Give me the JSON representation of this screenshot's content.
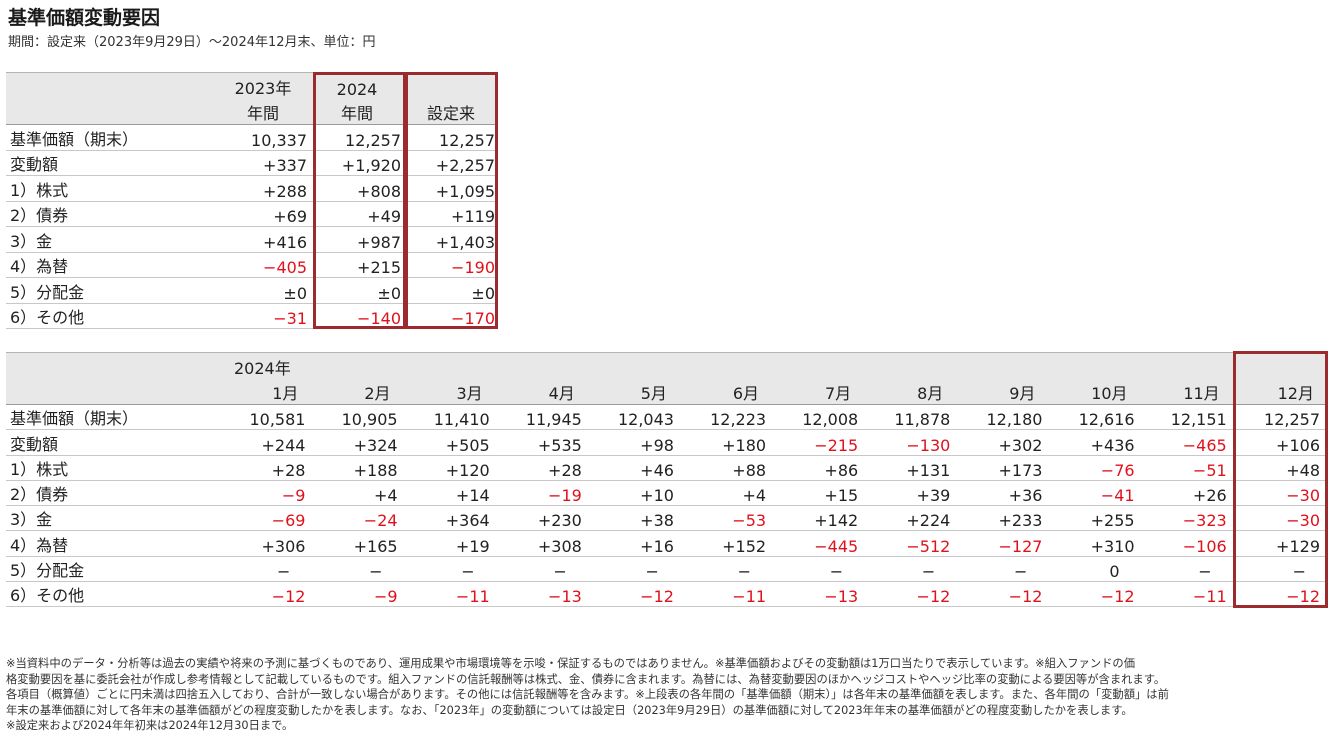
{
  "header": {
    "title": "基準価額変動要因",
    "subtitle": "期間：設定来（2023年9月29日）～2024年12月末、単位：円"
  },
  "annual_table": {
    "columns": [
      {
        "line1": "2023年",
        "line2": "年間"
      },
      {
        "line1": "2024",
        "line2": "年間"
      },
      {
        "line1": "",
        "line2": "設定来"
      }
    ],
    "rows": [
      {
        "label": "基準価額（期末）",
        "values": [
          "10,337",
          "12,257",
          "12,257"
        ]
      },
      {
        "label": "変動額",
        "values": [
          "+337",
          "+1,920",
          "+2,257"
        ]
      },
      {
        "label": "1）株式",
        "values": [
          "+288",
          "+808",
          "+1,095"
        ]
      },
      {
        "label": "2）債券",
        "values": [
          "+69",
          "+49",
          "+119"
        ]
      },
      {
        "label": "3）金",
        "values": [
          "+416",
          "+987",
          "+1,403"
        ]
      },
      {
        "label": "4）為替",
        "values": [
          "−405",
          "+215",
          "−190"
        ]
      },
      {
        "label": "5）分配金",
        "values": [
          "±0",
          "±0",
          "±0"
        ]
      },
      {
        "label": "6）その他",
        "values": [
          "−31",
          "−140",
          "−170"
        ]
      }
    ]
  },
  "monthly_table": {
    "year_label": "2024年",
    "columns": [
      "1月",
      "2月",
      "3月",
      "4月",
      "5月",
      "6月",
      "7月",
      "8月",
      "9月",
      "10月",
      "11月",
      "12月"
    ],
    "rows": [
      {
        "label": "基準価額（期末）",
        "values": [
          "10,581",
          "10,905",
          "11,410",
          "11,945",
          "12,043",
          "12,223",
          "12,008",
          "11,878",
          "12,180",
          "12,616",
          "12,151",
          "12,257"
        ]
      },
      {
        "label": "変動額",
        "values": [
          "+244",
          "+324",
          "+505",
          "+535",
          "+98",
          "+180",
          "−215",
          "−130",
          "+302",
          "+436",
          "−465",
          "+106"
        ]
      },
      {
        "label": "1）株式",
        "values": [
          "+28",
          "+188",
          "+120",
          "+28",
          "+46",
          "+88",
          "+86",
          "+131",
          "+173",
          "−76",
          "−51",
          "+48"
        ]
      },
      {
        "label": "2）債券",
        "values": [
          "−9",
          "+4",
          "+14",
          "−19",
          "+10",
          "+4",
          "+15",
          "+39",
          "+36",
          "−41",
          "+26",
          "−30"
        ]
      },
      {
        "label": "3）金",
        "values": [
          "−69",
          "−24",
          "+364",
          "+230",
          "+38",
          "−53",
          "+142",
          "+224",
          "+233",
          "+255",
          "−323",
          "−30"
        ]
      },
      {
        "label": "4）為替",
        "values": [
          "+306",
          "+165",
          "+19",
          "+308",
          "+16",
          "+152",
          "−445",
          "−512",
          "−127",
          "+310",
          "−106",
          "+129"
        ]
      },
      {
        "label": "5）分配金",
        "values": [
          "−",
          "−",
          "−",
          "−",
          "−",
          "−",
          "−",
          "−",
          "−",
          "0",
          "−",
          "−"
        ]
      },
      {
        "label": "6）その他",
        "values": [
          "−12",
          "−9",
          "−11",
          "−13",
          "−12",
          "−11",
          "−13",
          "−12",
          "−12",
          "−12",
          "−11",
          "−12"
        ]
      }
    ]
  },
  "notes": [
    "※当資料中のデータ・分析等は過去の実績や将来の予測に基づくものであり、運用成果や市場環境等を示唆・保証するものではありません。※基準価額およびその変動額は1万口当たりで表示しています。※組入ファンドの価",
    "格変動要因を基に委託会社が作成し参考情報として記載しているものです。組入ファンドの信託報酬等は株式、金、債券に含まれます。為替には、為替変動要因のほかヘッジコストやヘッジ比率の変動による要因等が含まれます。",
    "各項目（概算値）ごとに円未満は四捨五入しており、合計が一致しない場合があります。その他には信託報酬等を含みます。※上段表の各年間の「基準価額（期末）」は各年末の基準価額を表します。また、各年間の「変動額」は前",
    "年末の基準価額に対して各年末の基準価額がどの程度変動したかを表します。なお、「2023年」の変動額については設定日（2023年9月29日）の基準価額に対して2023年年末の基準価額がどの程度変動したかを表します。",
    "※設定来および2024年年初来は2024年12月30日まで。"
  ],
  "colors": {
    "negative": "#e0111b",
    "highlight_border": "#9c2b30",
    "header_bg": "#e8e8e8"
  }
}
